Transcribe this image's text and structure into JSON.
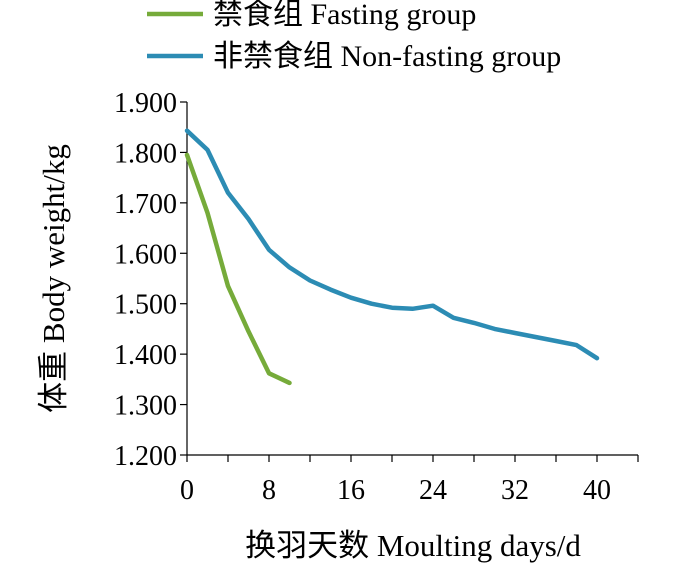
{
  "chart_data": {
    "type": "line",
    "xlabel": "换羽天数  Moulting days/d",
    "ylabel": "体重  Body weight/kg",
    "xlim": [
      0,
      44
    ],
    "ylim": [
      1.2,
      1.9
    ],
    "x_ticks": [
      0,
      8,
      16,
      24,
      32,
      40
    ],
    "y_ticks": [
      1.2,
      1.3,
      1.4,
      1.5,
      1.6,
      1.7,
      1.8,
      1.9
    ],
    "x_tick_labels": [
      "0",
      "8",
      "16",
      "24",
      "32",
      "40"
    ],
    "y_tick_labels": [
      "1.200",
      "1.300",
      "1.400",
      "1.500",
      "1.600",
      "1.700",
      "1.800",
      "1.900"
    ],
    "grid": false,
    "legend_position": "top",
    "series": [
      {
        "name": "禁食组  Fasting group",
        "color": "#76AB3A",
        "x": [
          0,
          2,
          4,
          6,
          8,
          10
        ],
        "y": [
          1.795,
          1.68,
          1.535,
          1.445,
          1.362,
          1.343
        ]
      },
      {
        "name": "非禁食组 Non-fasting group",
        "color": "#2C8CB4",
        "x": [
          0,
          2,
          4,
          6,
          8,
          10,
          12,
          14,
          16,
          18,
          20,
          22,
          24,
          26,
          28,
          30,
          32,
          34,
          36,
          38,
          40
        ],
        "y": [
          1.843,
          1.805,
          1.72,
          1.668,
          1.607,
          1.572,
          1.546,
          1.528,
          1.512,
          1.5,
          1.492,
          1.49,
          1.496,
          1.472,
          1.462,
          1.45,
          1.442,
          1.434,
          1.426,
          1.418,
          1.392
        ]
      }
    ]
  }
}
